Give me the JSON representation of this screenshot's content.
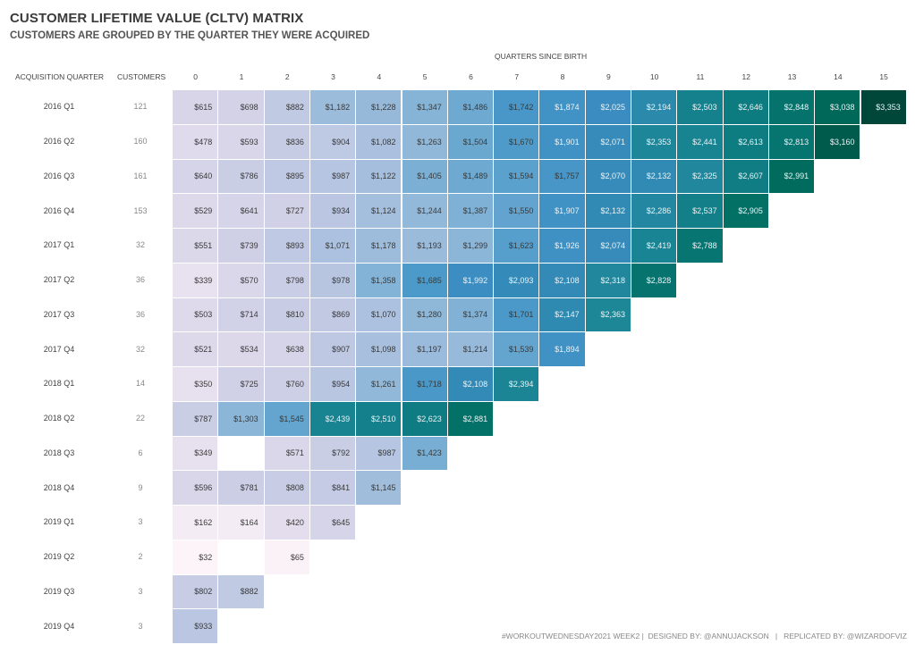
{
  "title": "CUSTOMER LIFETIME VALUE (CLTV) MATRIX",
  "subtitle": "CUSTOMERS ARE GROUPED BY THE QUARTER THEY WERE ACQUIRED",
  "headers": {
    "acquisition_quarter": "ACQUISITION QUARTER",
    "customers": "CUSTOMERS",
    "quarters_since_birth": "QUARTERS SINCE BIRTH"
  },
  "footer": "#WORKOUTWEDNESDAY2021 WEEK2 |  DESIGNED BY: @ANNUJACKSON   |   REPLICATED BY: @WIZARDOFVIZ",
  "colors": {
    "scale": [
      "#fdf4f9",
      "#e6dfee",
      "#d3d2e7",
      "#b2c3e0",
      "#83b3d6",
      "#4a99c9",
      "#3a8cc1",
      "#1d8698",
      "#0a7a7c",
      "#006a5a",
      "#00473a"
    ],
    "dark_text": "#3a3a3a",
    "light_text": "#eaf2f5"
  },
  "chart_data": {
    "type": "heatmap",
    "title": "CUSTOMER LIFETIME VALUE (CLTV) MATRIX",
    "subtitle": "CUSTOMERS ARE GROUPED BY THE QUARTER THEY WERE ACQUIRED",
    "xlabel": "QUARTERS SINCE BIRTH",
    "ylabel": "ACQUISITION QUARTER",
    "x": [
      "0",
      "1",
      "2",
      "3",
      "4",
      "5",
      "6",
      "7",
      "8",
      "9",
      "10",
      "11",
      "12",
      "13",
      "14",
      "15"
    ],
    "value_range": [
      32,
      3353
    ],
    "rows": [
      {
        "quarter": "2016 Q1",
        "customers": "121",
        "values": [
          615,
          698,
          882,
          1182,
          1228,
          1347,
          1486,
          1742,
          1874,
          2025,
          2194,
          2503,
          2646,
          2848,
          3038,
          3353
        ]
      },
      {
        "quarter": "2016 Q2",
        "customers": "160",
        "values": [
          478,
          593,
          836,
          904,
          1082,
          1263,
          1504,
          1670,
          1901,
          2071,
          2353,
          2441,
          2613,
          2813,
          3160
        ]
      },
      {
        "quarter": "2016 Q3",
        "customers": "161",
        "values": [
          640,
          786,
          895,
          987,
          1122,
          1405,
          1489,
          1594,
          1757,
          2070,
          2132,
          2325,
          2607,
          2991
        ]
      },
      {
        "quarter": "2016 Q4",
        "customers": "153",
        "values": [
          529,
          641,
          727,
          934,
          1124,
          1244,
          1387,
          1550,
          1907,
          2132,
          2286,
          2537,
          2905
        ]
      },
      {
        "quarter": "2017 Q1",
        "customers": "32",
        "values": [
          551,
          739,
          893,
          1071,
          1178,
          1193,
          1299,
          1623,
          1926,
          2074,
          2419,
          2788
        ]
      },
      {
        "quarter": "2017 Q2",
        "customers": "36",
        "values": [
          339,
          570,
          798,
          978,
          1358,
          1685,
          1992,
          2093,
          2108,
          2318,
          2828
        ]
      },
      {
        "quarter": "2017 Q3",
        "customers": "36",
        "values": [
          503,
          714,
          810,
          869,
          1070,
          1280,
          1374,
          1701,
          2147,
          2363
        ]
      },
      {
        "quarter": "2017 Q4",
        "customers": "32",
        "values": [
          521,
          534,
          638,
          907,
          1098,
          1197,
          1214,
          1539,
          1894
        ]
      },
      {
        "quarter": "2018 Q1",
        "customers": "14",
        "values": [
          350,
          725,
          760,
          954,
          1261,
          1718,
          2108,
          2394
        ]
      },
      {
        "quarter": "2018 Q2",
        "customers": "22",
        "values": [
          787,
          1303,
          1545,
          2439,
          2510,
          2623,
          2881
        ]
      },
      {
        "quarter": "2018 Q3",
        "customers": "6",
        "values": [
          349,
          null,
          571,
          792,
          987,
          1423
        ]
      },
      {
        "quarter": "2018 Q4",
        "customers": "9",
        "values": [
          596,
          781,
          808,
          841,
          1145
        ]
      },
      {
        "quarter": "2019 Q1",
        "customers": "3",
        "values": [
          162,
          164,
          420,
          645
        ]
      },
      {
        "quarter": "2019 Q2",
        "customers": "2",
        "values": [
          32,
          null,
          65
        ]
      },
      {
        "quarter": "2019 Q3",
        "customers": "3",
        "values": [
          802,
          882
        ]
      },
      {
        "quarter": "2019 Q4",
        "customers": "3",
        "values": [
          933
        ]
      }
    ],
    "value_format": "$#,##0"
  }
}
